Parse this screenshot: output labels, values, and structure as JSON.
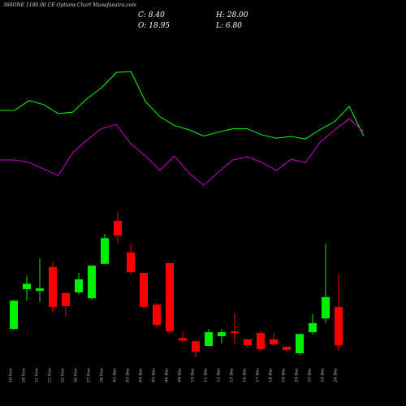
{
  "chart_data": {
    "type": "candlestick",
    "title": "360ONE 1180.00 CE Options Chart Munafasutra.com",
    "summary": {
      "close": "C: 8.40",
      "high": "H: 28.00",
      "open": "O: 18.95",
      "low": "L: 6.80"
    },
    "categories": [
      "19 Nov",
      "20 Nov",
      "21 Nov",
      "22 Nov",
      "25 Nov",
      "26 Nov",
      "27 Nov",
      "28 Nov",
      "02 Dec",
      "03 Dec",
      "04 Dec",
      "05 Dec",
      "06 Dec",
      "09 Dec",
      "10 Dec",
      "11 Dec",
      "12 Dec",
      "13 Dec",
      "16 Dec",
      "17 Dec",
      "18 Dec",
      "19 Dec",
      "20 Dec",
      "23 Dec",
      "24 Dec",
      "26 Dec"
    ],
    "open": [
      12.9,
      23.9,
      23.4,
      30.0,
      22.8,
      23.0,
      21.4,
      30.9,
      42.8,
      34.0,
      28.4,
      19.6,
      31.1,
      10.4,
      9.5,
      8.2,
      10.9,
      12.2,
      10.0,
      11.8,
      10.0,
      8.0,
      6.2,
      12.0,
      15.8,
      18.95
    ],
    "high": [
      20.9,
      27.5,
      32.5,
      31.5,
      23.0,
      28.4,
      30.4,
      39.2,
      45.4,
      36.5,
      28.4,
      20.1,
      31.1,
      12.2,
      9.5,
      12.9,
      12.9,
      17.2,
      10.0,
      12.5,
      11.8,
      8.0,
      11.5,
      17.0,
      36.5,
      28.0
    ],
    "low": [
      12.7,
      20.7,
      20.3,
      17.4,
      16.3,
      22.6,
      21.0,
      30.9,
      36.5,
      27.9,
      18.5,
      13.3,
      11.8,
      9.1,
      5.0,
      8.2,
      8.9,
      8.6,
      7.9,
      6.8,
      8.2,
      6.4,
      5.7,
      11.5,
      14.5,
      6.8
    ],
    "close": [
      20.7,
      25.4,
      24.1,
      19.0,
      19.2,
      26.6,
      30.4,
      38.0,
      38.7,
      28.6,
      19.0,
      14.0,
      12.2,
      9.7,
      6.6,
      12.0,
      12.0,
      11.8,
      8.4,
      7.3,
      8.6,
      7.1,
      11.5,
      14.5,
      21.7,
      8.4
    ],
    "up_color": "#00ee00",
    "down_color": "#ff0000",
    "lines": [
      {
        "color": "#00ff00",
        "values": [
          73.3,
          73.3,
          76.0,
          74.9,
          72.4,
          72.8,
          76.6,
          79.6,
          83.8,
          84.0,
          75.7,
          71.5,
          69.1,
          67.9,
          66.2,
          67.3,
          68.2,
          68.2,
          66.5,
          65.6,
          66.1,
          65.4,
          68.0,
          70.2,
          74.4,
          66.2
        ]
      },
      {
        "color": "#cc00cc",
        "values": [
          59.6,
          59.6,
          58.9,
          57.1,
          55.3,
          61.6,
          65.2,
          68.3,
          69.4,
          64.0,
          60.7,
          56.7,
          60.7,
          55.9,
          52.6,
          56.2,
          59.6,
          60.5,
          58.9,
          56.7,
          59.8,
          58.9,
          64.5,
          67.9,
          71.0,
          67.4
        ]
      }
    ],
    "ylim": [
      -8.4,
      103.8
    ]
  }
}
